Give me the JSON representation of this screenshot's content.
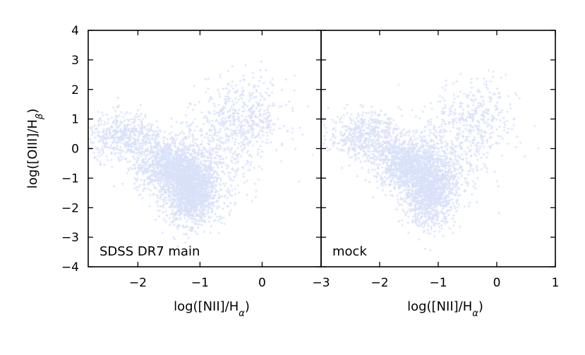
{
  "chart_data": {
    "type": "scatter",
    "marker": "+",
    "point_color": "#4169e1",
    "ylabel": "log([OIII]/H",
    "ylabel_sub": "β",
    "ylabel_close": ")",
    "yticks": [
      "4",
      "3",
      "2",
      "1",
      "0",
      "−1",
      "−2",
      "−3",
      "−4"
    ],
    "ylim": [
      -4,
      4
    ],
    "panels": [
      {
        "label": "SDSS DR7 main",
        "xlabel": "log([NII]/H",
        "xlabel_sub": "α",
        "xlabel_close": ")",
        "xlim": [
          -2.8,
          0.95
        ],
        "xticks": [
          "−2",
          "−1",
          "0"
        ],
        "xtick_values": [
          -2,
          -1,
          0
        ],
        "clouds": [
          {
            "cx": -1.15,
            "cy": -1.45,
            "sx": 0.2,
            "sy": 0.55,
            "n": 1500
          },
          {
            "cx": -1.55,
            "cy": -0.6,
            "sx": 0.25,
            "sy": 0.45,
            "n": 900
          },
          {
            "cx": -2.2,
            "cy": 0.4,
            "sx": 0.3,
            "sy": 0.4,
            "n": 500
          },
          {
            "cx": -0.3,
            "cy": 1.0,
            "sx": 0.35,
            "sy": 0.7,
            "n": 500
          },
          {
            "cx": -0.9,
            "cy": -0.5,
            "sx": 0.35,
            "sy": 0.8,
            "n": 500
          }
        ]
      },
      {
        "label": "mock",
        "xlabel": "log([NII]/H",
        "xlabel_sub": "α",
        "xlabel_close": ")",
        "xlim": [
          -3.0,
          1.0
        ],
        "xticks": [
          "−3",
          "−2",
          "−1",
          "0",
          "1"
        ],
        "xtick_values": [
          -3,
          -2,
          -1,
          0,
          1
        ],
        "clouds": [
          {
            "cx": -1.15,
            "cy": -1.4,
            "sx": 0.22,
            "sy": 0.6,
            "n": 1200
          },
          {
            "cx": -1.6,
            "cy": -0.5,
            "sx": 0.25,
            "sy": 0.45,
            "n": 800
          },
          {
            "cx": -2.25,
            "cy": 0.45,
            "sx": 0.3,
            "sy": 0.4,
            "n": 500
          },
          {
            "cx": -0.35,
            "cy": 0.95,
            "sx": 0.35,
            "sy": 0.7,
            "n": 350
          },
          {
            "cx": -0.95,
            "cy": -0.45,
            "sx": 0.35,
            "sy": 0.8,
            "n": 400
          }
        ]
      }
    ]
  }
}
